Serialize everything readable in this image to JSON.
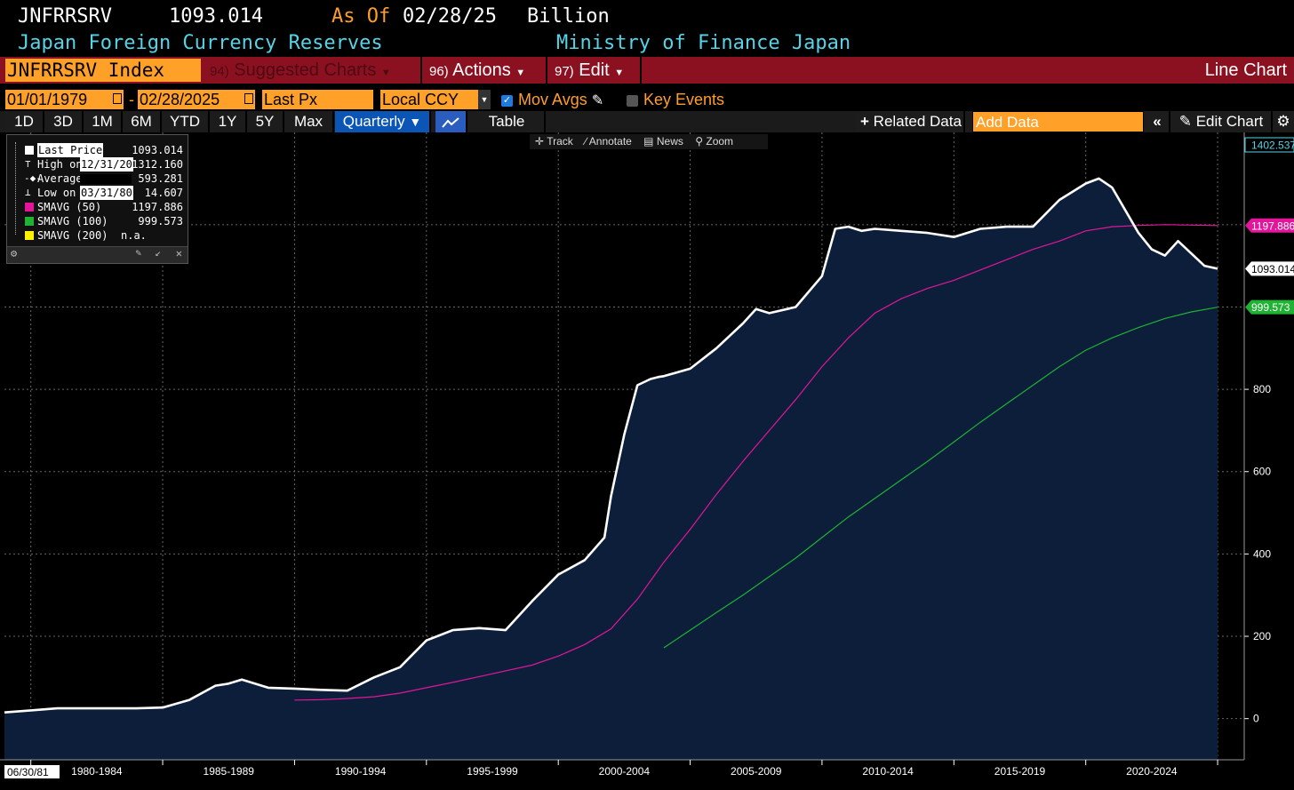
{
  "header": {
    "ticker": "JNFRRSRV",
    "last_value": "1093.014",
    "as_of_label": "As Of",
    "as_of_date": "02/28/25",
    "unit": "Billion",
    "security_name": "Japan Foreign Currency Reserves",
    "source": "Ministry of Finance Japan"
  },
  "function_bar": {
    "security": "JNFRRSRV Index",
    "suggested_num": "94)",
    "suggested_label": "Suggested Charts",
    "actions_num": "96)",
    "actions_label": "Actions",
    "edit_num": "97)",
    "edit_label": "Edit",
    "chart_type": "Line Chart"
  },
  "controls": {
    "start_date": "01/01/1979",
    "date_sep": "-",
    "end_date": "02/28/2025",
    "field": "Last Px",
    "currency": "Local CCY",
    "mov_avgs_label": "Mov Avgs",
    "key_events_label": "Key Events"
  },
  "periods": [
    "1D",
    "3D",
    "1M",
    "6M",
    "YTD",
    "1Y",
    "5Y",
    "Max"
  ],
  "frequency": "Quarterly",
  "table_label": "Table",
  "related_data_label": "Related Data",
  "add_data_placeholder": "Add Data",
  "edit_chart_label": "Edit Chart",
  "chart_tools": {
    "track": "Track",
    "annotate": "Annotate",
    "news": "News",
    "zoom": "Zoom"
  },
  "legend": {
    "rows": [
      {
        "label": "Last Price",
        "value": "1093.014",
        "color": "#ffffff"
      },
      {
        "label": "High on",
        "date": "12/31/20",
        "value": "1312.160"
      },
      {
        "label": "Average",
        "value": "593.281"
      },
      {
        "label": "Low on",
        "date": "03/31/80",
        "value": "14.607"
      },
      {
        "label": "SMAVG (50)",
        "value": "1197.886",
        "color": "#e3169b"
      },
      {
        "label": "SMAVG (100)",
        "value": "999.573",
        "color": "#1fb233"
      },
      {
        "label": "SMAVG (200)",
        "value": "n.a.",
        "color": "#fff200"
      }
    ]
  },
  "colors": {
    "background": "#000000",
    "area_fill": "#0c1e3a",
    "price_line": "#ffffff",
    "sma50": "#e3169b",
    "sma100": "#1fb233",
    "sma200": "#fff200",
    "accent_orange": "#ffa028",
    "function_bar": "#8b1120",
    "selected_blue": "#0b55b7"
  },
  "chart_data": {
    "type": "area",
    "ylim": [
      -100,
      1402.537
    ],
    "yticks": [
      0,
      200,
      400,
      600,
      800
    ],
    "y_top_label": "1402.537",
    "grid": true,
    "x_start_label": "06/30/81",
    "x_period_labels": [
      "1980-1984",
      "1985-1989",
      "1990-1994",
      "1995-1999",
      "2000-2004",
      "2005-2009",
      "2010-2014",
      "2015-2019",
      "2020-2024"
    ],
    "series": [
      {
        "name": "Last Price",
        "x": [
          1979.0,
          1980.0,
          1981.0,
          1982.0,
          1983.0,
          1984.0,
          1985.0,
          1986.0,
          1987.0,
          1987.5,
          1988.0,
          1989.0,
          1990.0,
          1991.0,
          1992.0,
          1993.0,
          1994.0,
          1995.0,
          1996.0,
          1997.0,
          1998.0,
          1999.0,
          2000.0,
          2001.0,
          2001.75,
          2002.0,
          2002.5,
          2003.0,
          2003.5,
          2003.8,
          2004.0,
          2005.0,
          2006.0,
          2007.0,
          2007.5,
          2008.0,
          2009.0,
          2010.0,
          2010.5,
          2011.0,
          2011.5,
          2012.0,
          2013.0,
          2014.0,
          2015.0,
          2016.0,
          2017.0,
          2018.0,
          2019.0,
          2020.0,
          2020.5,
          2021.0,
          2022.0,
          2022.5,
          2023.0,
          2023.5,
          2024.0,
          2024.5,
          2025.0
        ],
        "values": [
          15,
          20,
          25,
          25,
          25,
          25,
          27,
          45,
          80,
          85,
          95,
          75,
          73,
          70,
          68,
          100,
          125,
          190,
          215,
          220,
          215,
          285,
          350,
          385,
          440,
          540,
          690,
          810,
          825,
          830,
          832,
          850,
          900,
          960,
          995,
          985,
          1000,
          1075,
          1190,
          1195,
          1185,
          1190,
          1185,
          1180,
          1170,
          1190,
          1195,
          1195,
          1260,
          1300,
          1312,
          1290,
          1180,
          1140,
          1125,
          1160,
          1130,
          1100,
          1093
        ]
      },
      {
        "name": "SMAVG (50)",
        "x": [
          1990.0,
          1991.0,
          1992.0,
          1993.0,
          1994.0,
          1995.0,
          1996.0,
          1997.0,
          1998.0,
          1999.0,
          2000.0,
          2001.0,
          2002.0,
          2003.0,
          2004.0,
          2005.0,
          2006.0,
          2007.0,
          2008.0,
          2009.0,
          2010.0,
          2011.0,
          2012.0,
          2013.0,
          2014.0,
          2015.0,
          2016.0,
          2017.0,
          2018.0,
          2019.0,
          2020.0,
          2021.0,
          2022.0,
          2023.0,
          2024.0,
          2025.0
        ],
        "values": [
          45,
          46,
          49,
          53,
          62,
          75,
          88,
          102,
          116,
          130,
          152,
          180,
          218,
          290,
          380,
          460,
          545,
          625,
          700,
          775,
          855,
          925,
          985,
          1020,
          1045,
          1065,
          1090,
          1115,
          1140,
          1160,
          1185,
          1195,
          1198,
          1200,
          1199,
          1197.886
        ]
      },
      {
        "name": "SMAVG (100)",
        "x": [
          2004.0,
          2005.0,
          2006.0,
          2007.0,
          2008.0,
          2009.0,
          2010.0,
          2011.0,
          2012.0,
          2013.0,
          2014.0,
          2015.0,
          2016.0,
          2017.0,
          2018.0,
          2019.0,
          2020.0,
          2021.0,
          2022.0,
          2023.0,
          2024.0,
          2025.0
        ],
        "values": [
          172,
          215,
          258,
          300,
          345,
          390,
          440,
          490,
          535,
          580,
          625,
          672,
          720,
          765,
          810,
          855,
          895,
          925,
          950,
          972,
          988,
          999.573
        ]
      },
      {
        "name": "SMAVG (200)",
        "x": [],
        "values": []
      }
    ],
    "markers": [
      {
        "label": "1402.537",
        "value": 1402.537
      },
      {
        "label": "1197.886",
        "value": 1197.886
      },
      {
        "label": "1093.014",
        "value": 1093.014
      },
      {
        "label": "999.573",
        "value": 999.573
      }
    ]
  }
}
